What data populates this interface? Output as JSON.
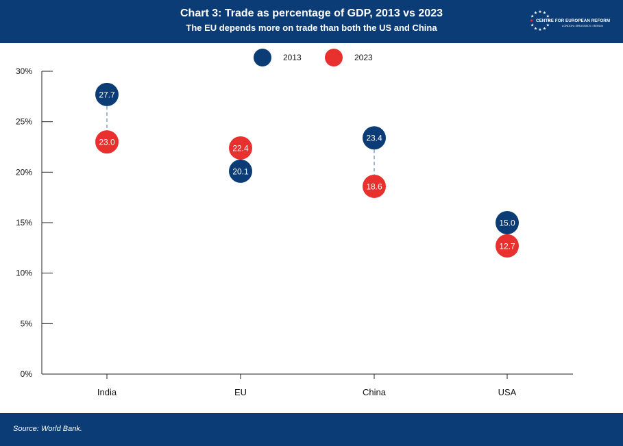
{
  "header": {
    "title": "Chart 3: Trade as percentage of GDP, 2013 vs 2023",
    "subtitle": "The EU depends more on trade than both the US and China",
    "logo_name": "CENTRE FOR EUROPEAN REFORM",
    "logo_cities": "LONDON • BRUSSELS • BERLIN"
  },
  "footer": {
    "source": "Source: World Bank."
  },
  "colors": {
    "header_bg": "#0b3c75",
    "series_2013": "#0b3c75",
    "series_2023": "#e8302e",
    "connector": "#5f87b3"
  },
  "chart_data": {
    "type": "scatter",
    "categories": [
      "India",
      "EU",
      "China",
      "USA"
    ],
    "series": [
      {
        "name": "2013",
        "values": [
          27.7,
          20.1,
          23.4,
          15.0
        ],
        "labels": [
          "27.7",
          "20.1",
          "23.4",
          "15.0"
        ]
      },
      {
        "name": "2023",
        "values": [
          23.0,
          22.4,
          18.6,
          12.7
        ],
        "labels": [
          "23.0",
          "22.4",
          "18.6",
          "12.7"
        ]
      }
    ],
    "ylim": [
      0,
      30
    ],
    "yticks": [
      0,
      5,
      10,
      15,
      20,
      25,
      30
    ],
    "ytick_labels": [
      "0%",
      "5%",
      "10%",
      "15%",
      "20%",
      "25%",
      "30%"
    ],
    "legend_position": "top-center",
    "grid": false
  }
}
